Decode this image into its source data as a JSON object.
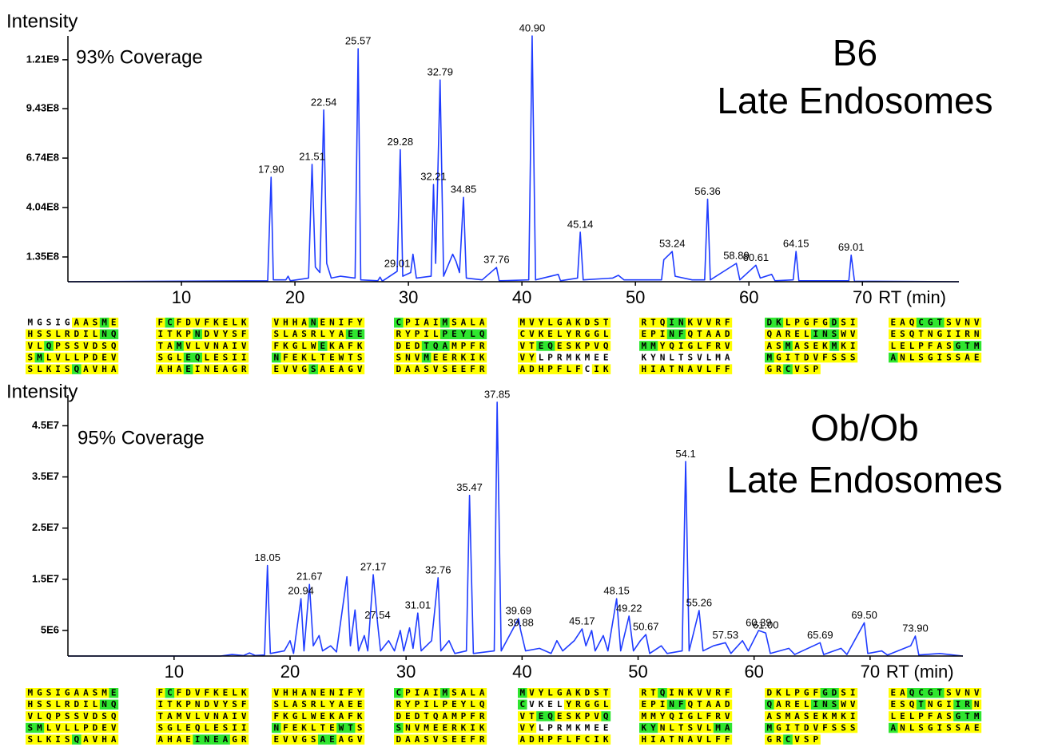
{
  "chart_data": [
    {
      "type": "line",
      "y_label": "Intensity",
      "x_label": "RT (min)",
      "coverage": "93% Coverage",
      "title": [
        "B6",
        "Late Endosomes"
      ],
      "color": "#1f3cff",
      "xlim": [
        0,
        78.5
      ],
      "xticks": [
        10,
        20,
        30,
        40,
        50,
        60,
        70
      ],
      "ylim": [
        0,
        1340000000.0
      ],
      "yticks": [
        {
          "value": 135000000.0,
          "label": "1.35E8"
        },
        {
          "value": 404000000.0,
          "label": "4.04E8"
        },
        {
          "value": 674000000.0,
          "label": "6.74E8"
        },
        {
          "value": 943000000.0,
          "label": "9.43E8"
        },
        {
          "value": 1210000000.0,
          "label": "1.21E9"
        }
      ],
      "x": [
        0,
        17.6,
        17.9,
        18.1,
        19.2,
        19.4,
        19.6,
        21.2,
        21.51,
        21.8,
        22.2,
        22.54,
        22.8,
        23.2,
        24,
        25.3,
        25.57,
        25.8,
        27.3,
        27.5,
        27.7,
        29.01,
        29.28,
        29.5,
        30.2,
        30.4,
        30.7,
        32.0,
        32.21,
        32.4,
        32.79,
        33.1,
        33.9,
        34.2,
        34.5,
        34.85,
        35.1,
        36.5,
        37.76,
        38.0,
        40.6,
        40.9,
        41.2,
        43.2,
        43.4,
        44.9,
        45.14,
        45.4,
        48,
        48.5,
        49,
        52.3,
        52.5,
        53.0,
        53.24,
        53.5,
        55,
        56.1,
        56.36,
        56.6,
        58.89,
        59.2,
        60.61,
        61,
        62,
        62.3,
        63.9,
        64.15,
        64.4,
        68.8,
        69.01,
        69.3,
        78.5
      ],
      "values": [
        0,
        5000000.0,
        570000000.0,
        10000000.0,
        10000000.0,
        30000000.0,
        5000000.0,
        20000000.0,
        640000000.0,
        80000000.0,
        50000000.0,
        936000000.0,
        100000000.0,
        20000000.0,
        30000000.0,
        20000000.0,
        1270000000.0,
        10000000.0,
        5000000.0,
        25000000.0,
        3000000.0,
        57000000.0,
        720000000.0,
        30000000.0,
        50000000.0,
        150000000.0,
        20000000.0,
        30000000.0,
        530000000.0,
        100000000.0,
        1100000000.0,
        30000000.0,
        150000000.0,
        110000000.0,
        50000000.0,
        460000000.0,
        20000000.0,
        10000000.0,
        78000000.0,
        5000000.0,
        10000000.0,
        1340000000.0,
        10000000.0,
        40000000.0,
        5000000.0,
        20000000.0,
        270000000.0,
        10000000.0,
        20000000.0,
        35000000.0,
        10000000.0,
        10000000.0,
        120000000.0,
        150000000.0,
        165000000.0,
        30000000.0,
        10000000.0,
        10000000.0,
        450000000.0,
        10000000.0,
        100000000.0,
        10000000.0,
        90000000.0,
        20000000.0,
        40000000.0,
        5000000.0,
        10000000.0,
        165000000.0,
        5000000.0,
        5000000.0,
        145000000.0,
        3000000.0,
        0
      ],
      "peaks": [
        {
          "x": 17.9,
          "y": 570000000.0,
          "label": "17.90"
        },
        {
          "x": 21.51,
          "y": 640000000.0,
          "label": "21.51"
        },
        {
          "x": 22.54,
          "y": 936000000.0,
          "label": "22.54"
        },
        {
          "x": 25.57,
          "y": 1270000000.0,
          "label": "25.57"
        },
        {
          "x": 29.01,
          "y": 57000000.0,
          "label": "29.01"
        },
        {
          "x": 29.28,
          "y": 720000000.0,
          "label": "29.28"
        },
        {
          "x": 32.21,
          "y": 530000000.0,
          "label": "32.21"
        },
        {
          "x": 32.79,
          "y": 1100000000.0,
          "label": "32.79"
        },
        {
          "x": 34.85,
          "y": 460000000.0,
          "label": "34.85"
        },
        {
          "x": 37.76,
          "y": 78000000.0,
          "label": "37.76"
        },
        {
          "x": 40.9,
          "y": 1340000000.0,
          "label": "40.90"
        },
        {
          "x": 45.14,
          "y": 270000000.0,
          "label": "45.14"
        },
        {
          "x": 53.24,
          "y": 165000000.0,
          "label": "53.24"
        },
        {
          "x": 56.36,
          "y": 450000000.0,
          "label": "56.36"
        },
        {
          "x": 58.89,
          "y": 100000000.0,
          "label": "58.89"
        },
        {
          "x": 60.61,
          "y": 90000000.0,
          "label": "60.61"
        },
        {
          "x": 64.15,
          "y": 165000000.0,
          "label": "64.15"
        },
        {
          "x": 69.01,
          "y": 145000000.0,
          "label": "69.01"
        }
      ],
      "sequence": {
        "highlight_colors": {
          "y": "#ffff00",
          "g": "#2fe62f",
          "w": "#ffffff"
        },
        "rows": [
          [
            "MGSIGAASME",
            "FCFDVFKELK",
            "VHHANENIFY",
            "CPIAIMSALA",
            "MVYLGAKDST",
            "RTQINKVVRF",
            "DKLPGFGDSI",
            "EAQCGTSVNV"
          ],
          [
            "HSSLRDILNQ",
            "ITKPNDVYSF",
            "SLASRLYAEE",
            "RYPILPEYLQ",
            "CVKELYRGGL",
            "EPINFQTAAD",
            "QARELINSWV",
            "ESQTNGIIRN"
          ],
          [
            "VLQPSSVDSQ",
            "TAMVLVNAIV",
            "FKGLWEKAFK",
            "DEDTQAMPFR",
            "VTEQESKPVQ",
            "MMYQIGLFRV",
            "ASMASEKMKI",
            "LELPFASGTM"
          ],
          [
            "SMLVLLPDEV",
            "SGLEQLESII",
            "NFEKLTEWTS",
            "SNVMEERKIK",
            "VYLPRMKMEE",
            "KYNLTSVLMA",
            "MGITDVFSSS",
            "ANLSGISSAE"
          ],
          [
            "SLKISQAVHA",
            "AHAEINEAGR",
            "EVVGSAEAGV",
            "DAASVSEEFR",
            "ADHPFLFCIK",
            "HIATNAVLFF",
            "GRCVSP"
          ]
        ],
        "highlight": [
          [
            "wwwwwyyygy",
            "ygyyyyyyyy",
            "yyyygyyyyy",
            "gyyyygyyyy",
            "yyyyyyyyyy",
            "yyyggyyyyy",
            "ggyyyyygyy",
            "yyygggyyyy"
          ],
          [
            "yyyyyyyygg",
            "yyyygyyyyy",
            "yyyyyyyygg",
            "yyyyyggggg",
            "yyyyyyyyyy",
            "yyyggyyyyy",
            "yyyyygggyy",
            "yyyyyyyyyy"
          ],
          [
            "yygyyyyyyy",
            "yygyyyyyyy",
            "yyyyygyyyy",
            "yyygggyyyy",
            "yyggyyyyyy",
            "ggyyyyyyyy",
            "yygyyyygyy",
            "yyyyyyyggg"
          ],
          [
            "ygyyyyyyyy",
            "yyyggyyyyy",
            "gyyyyyyyyy",
            "yyygyyyyyy",
            "yywwwwwwww",
            "wwwwwwwwww",
            "gyyyyyyyyy",
            "gyyyyyyyyy"
          ],
          [
            "yyyyygyyyy",
            "yyygyyyyyy",
            "yyyygyyyyy",
            "yyyyyyyyyy",
            "yyyyyyywyy",
            "yyyyyyyyyy",
            "yygyyy"
          ]
        ]
      }
    },
    {
      "type": "line",
      "y_label": "Intensity",
      "x_label": "RT (min)",
      "coverage": "95% Coverage",
      "title": [
        "Ob/Ob",
        "Late Endosomes"
      ],
      "color": "#1f3cff",
      "xlim": [
        0.85,
        78
      ],
      "xticks": [
        10,
        20,
        30,
        40,
        50,
        60,
        70
      ],
      "ylim": [
        0,
        51000000.0
      ],
      "yticks": [
        {
          "value": 5000000.0,
          "label": "5E6"
        },
        {
          "value": 15000000.0,
          "label": "1.5E7"
        },
        {
          "value": 25000000.0,
          "label": "2.5E7"
        },
        {
          "value": 35000000.0,
          "label": "3.5E7"
        },
        {
          "value": 45000000.0,
          "label": "4.5E7"
        }
      ],
      "x": [
        0.85,
        14,
        15,
        16,
        16.5,
        17,
        17.8,
        18.05,
        18.3,
        19.5,
        20,
        20.3,
        20.94,
        21.2,
        21.67,
        22,
        22.5,
        22.8,
        23.5,
        24,
        24.9,
        25.2,
        25.6,
        25.9,
        26.4,
        26.7,
        27.17,
        27.54,
        27.8,
        28.5,
        29,
        29.5,
        29.8,
        30.3,
        30.6,
        31.01,
        31.3,
        32.2,
        32.76,
        33,
        33.7,
        34.2,
        35.2,
        35.47,
        35.8,
        37.6,
        37.85,
        38.2,
        39.69,
        39.88,
        40.3,
        41.5,
        42.5,
        43,
        43.5,
        44.5,
        45.17,
        45.5,
        46,
        46.3,
        47,
        47.4,
        48.15,
        48.5,
        49.22,
        49.6,
        50.2,
        50.67,
        51,
        52,
        52.5,
        53.8,
        54.1,
        54.4,
        55.26,
        55.6,
        56.5,
        57.53,
        58,
        59,
        59.5,
        60.39,
        61.0,
        61.4,
        63,
        63.5,
        65.69,
        66,
        67.5,
        68,
        69.5,
        69.8,
        71,
        71.5,
        73.5,
        73.9,
        74.2,
        76,
        78
      ],
      "values": [
        0,
        0,
        300000.0,
        100000.0,
        600000.0,
        100000.0,
        200000.0,
        17700000.0,
        500000.0,
        1000000.0,
        3000000.0,
        500000.0,
        11200000.0,
        1000000.0,
        14000000.0,
        2000000.0,
        4000000.0,
        1000000.0,
        2000000.0,
        800000.0,
        15500000.0,
        2000000.0,
        9000000.0,
        1000000.0,
        4000000.0,
        1000000.0,
        15900000.0,
        6500000.0,
        1000000.0,
        3000000.0,
        1000000.0,
        5000000.0,
        1000000.0,
        5500000.0,
        1500000.0,
        8400000.0,
        1000000.0,
        3000000.0,
        15300000.0,
        1000000.0,
        3000000.0,
        500000.0,
        1000000.0,
        31400000.0,
        500000.0,
        1000000.0,
        49600000.0,
        1000000.0,
        7300000.0,
        5000000.0,
        1000000.0,
        1500000.0,
        500000.0,
        3000000.0,
        1000000.0,
        3000000.0,
        5300000.0,
        2000000.0,
        5000000.0,
        1000000.0,
        4000000.0,
        1000000.0,
        11200000.0,
        1000000.0,
        7800000.0,
        1000000.0,
        3000000.0,
        4200000.0,
        500000.0,
        2000000.0,
        500000.0,
        1000000.0,
        38000000.0,
        1000000.0,
        8900000.0,
        1000000.0,
        2000000.0,
        2600000.0,
        500000.0,
        3000000.0,
        1000000.0,
        5000000.0,
        4500000.0,
        500000.0,
        1500000.0,
        300000.0,
        2600000.0,
        300000.0,
        1500000.0,
        300000.0,
        6500000.0,
        500000.0,
        1000000.0,
        200000.0,
        2000000.0,
        3900000.0,
        200000.0,
        500000.0,
        0
      ],
      "peaks": [
        {
          "x": 18.05,
          "y": 17700000.0,
          "label": "18.05"
        },
        {
          "x": 20.94,
          "y": 11200000.0,
          "label": "20.94"
        },
        {
          "x": 21.67,
          "y": 14000000.0,
          "label": "21.67"
        },
        {
          "x": 27.17,
          "y": 15900000.0,
          "label": "27.17"
        },
        {
          "x": 27.54,
          "y": 6500000.0,
          "label": "27.54"
        },
        {
          "x": 31.01,
          "y": 8400000.0,
          "label": "31.01"
        },
        {
          "x": 32.76,
          "y": 15300000.0,
          "label": "32.76"
        },
        {
          "x": 35.47,
          "y": 31400000.0,
          "label": "35.47"
        },
        {
          "x": 37.85,
          "y": 49600000.0,
          "label": "37.85"
        },
        {
          "x": 39.69,
          "y": 7300000.0,
          "label": "39.69"
        },
        {
          "x": 39.88,
          "y": 5000000.0,
          "label": "39.88"
        },
        {
          "x": 45.17,
          "y": 5300000.0,
          "label": "45.17"
        },
        {
          "x": 48.15,
          "y": 11200000.0,
          "label": "48.15"
        },
        {
          "x": 49.22,
          "y": 7800000.0,
          "label": "49.22"
        },
        {
          "x": 50.67,
          "y": 4200000.0,
          "label": "50.67"
        },
        {
          "x": 54.1,
          "y": 38000000.0,
          "label": "54.1"
        },
        {
          "x": 55.26,
          "y": 8900000.0,
          "label": "55.26"
        },
        {
          "x": 57.53,
          "y": 2600000.0,
          "label": "57.53"
        },
        {
          "x": 60.39,
          "y": 5000000.0,
          "label": "60.39"
        },
        {
          "x": 61.0,
          "y": 4500000.0,
          "label": "61.00"
        },
        {
          "x": 65.69,
          "y": 2600000.0,
          "label": "65.69"
        },
        {
          "x": 69.5,
          "y": 6500000.0,
          "label": "69.50"
        },
        {
          "x": 73.9,
          "y": 3900000.0,
          "label": "73.90"
        }
      ],
      "sequence": {
        "highlight_colors": {
          "y": "#ffff00",
          "g": "#2fe62f",
          "w": "#ffffff"
        },
        "rows": [
          [
            "MGSIGAASME",
            "FCFDVFKELK",
            "VHHANENIFY",
            "CPIAIMSALA",
            "MVYLGAKDST",
            "RTQINKVVRF",
            "DKLPGFGDSI",
            "EAQCGTSVNV"
          ],
          [
            "HSSLRDILNQ",
            "ITKPNDVYSF",
            "SLASRLYAEE",
            "RYPILPEYLQ",
            "CVKELYRGGL",
            "EPINFQTAAD",
            "QARELINSWV",
            "ESQTNGIIRN"
          ],
          [
            "VLQPSSVDSQ",
            "TAMVLVNAIV",
            "FKGLWEKAFK",
            "DEDTQAMPFR",
            "VTEQESKPVQ",
            "MMYQIGLFRV",
            "ASMASEKMKI",
            "LELPFASGTM"
          ],
          [
            "SMLVLLPDEV",
            "SGLEQLESII",
            "NFEKLTEWTS",
            "SNVMEERKIK",
            "VYLPRMKMEE",
            "KYNLTSVLMA",
            "MGITDVFSSS",
            "ANLSGISSAE"
          ],
          [
            "SLKISQAVHA",
            "AHAEINEAGR",
            "EVVGSAEAGV",
            "DAASVSEEFR",
            "ADHPFLFCIK",
            "HIATNAVLFF",
            "GRCVSP"
          ]
        ],
        "highlight": [
          [
            "yyyyyyyyyg",
            "ygyyyyyyyy",
            "yyyyyyyyyy",
            "gyyyygyyyy",
            "gyyyyyyyyy",
            "yygyyyyyyy",
            "yyyyyyggyy",
            "yyggggyyyy"
          ],
          [
            "yyyyyyyygg",
            "yyyyyyyyyy",
            "yyyyyyyyyy",
            "yyyyyyyyyy",
            "gwwwwyyyyy",
            "yyyggyyyyy",
            "gyyyygggyy",
            "yyygyyyggy"
          ],
          [
            "yyyyyyyyyy",
            "yyyyyyyyyy",
            "yyyyyyyyyy",
            "yyyyyyyyyy",
            "yyggyyyyyg",
            "yyyyyyyyyy",
            "yyyyyyyyyy",
            "yyyyyyyggg"
          ],
          [
            "ggyyyyyyyy",
            "yyyyyyyyyy",
            "gyyyyyyggy",
            "gyyyyyyyyy",
            "yywwwwwwww",
            "ggyyyyyygg",
            "gyyyyyyyyy",
            "gyyyyyyyyy"
          ],
          [
            "yyyyygyyyy",
            "yyyyggggyy",
            "yyyyyggyyy",
            "yyyyyyyyyy",
            "yyyyyyyyyy",
            "yyyyyyyyyy",
            "yygyyy"
          ]
        ]
      }
    }
  ]
}
